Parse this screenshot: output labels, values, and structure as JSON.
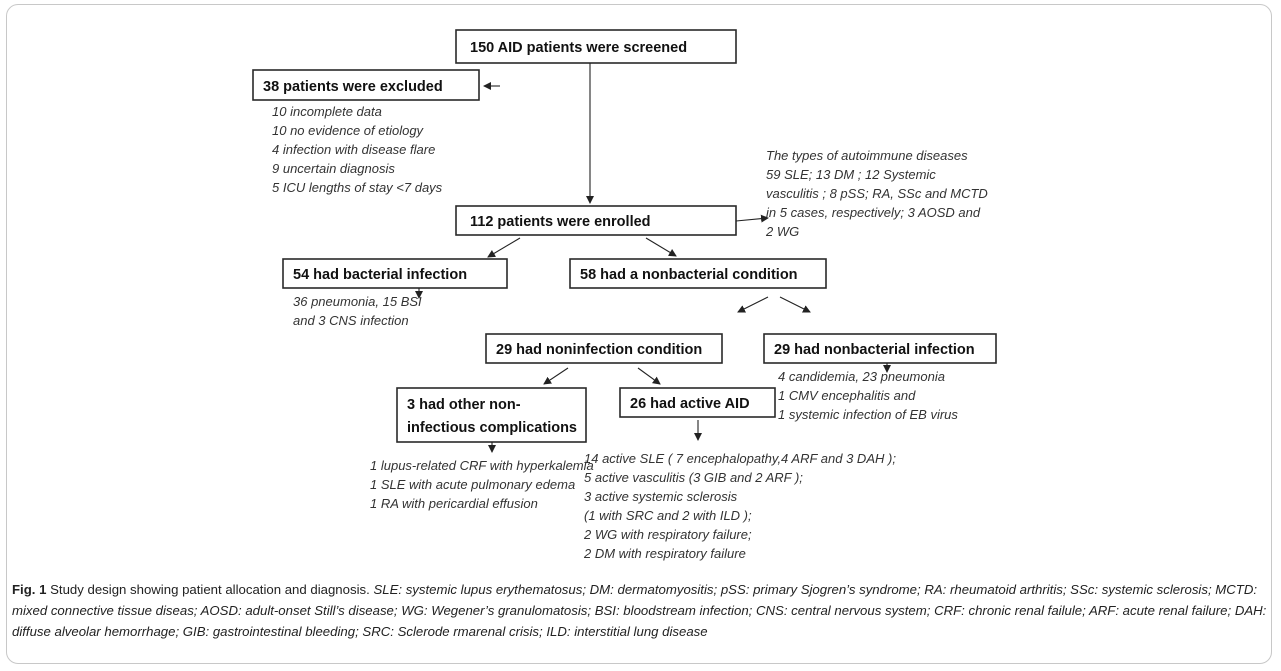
{
  "boxes": {
    "screened": "150 AID patients were screened",
    "excluded": "38 patients were excluded",
    "enrolled": "112 patients were enrolled",
    "bacterial": "54 had bacterial infection",
    "nonbacterial_condition": "58 had a nonbacterial condition",
    "noninfection": "29 had noninfection condition",
    "nonbacterial_infection": "29 had nonbacterial infection",
    "other_line1": "3 had other non-",
    "other_line2": "infectious complications",
    "active_aid": "26 had active AID"
  },
  "notes": {
    "excluded": [
      "10 incomplete data",
      "10 no evidence of etiology",
      "4 infection with disease flare",
      "9 uncertain diagnosis",
      "5 ICU lengths of stay <7 days"
    ],
    "types": [
      "The types of autoimmune diseases",
      "59 SLE; 13 DM ; 12 Systemic",
      "vasculitis ; 8 pSS; RA, SSc and MCTD",
      "in 5 cases, respectively; 3 AOSD and",
      "2 WG"
    ],
    "bacterial": [
      "36 pneumonia, 15 BSI",
      "and 3 CNS infection"
    ],
    "nonbacterial_infection": [
      "4 candidemia, 23 pneumonia",
      "1 CMV encephalitis and",
      "1 systemic infection of EB virus"
    ],
    "other": [
      "1 lupus-related CRF with hyperkalemia",
      "1 SLE with acute pulmonary edema",
      "1 RA with pericardial effusion"
    ],
    "active_aid": [
      "14 active SLE ( 7 encephalopathy,4 ARF and 3 DAH );",
      "5 active vasculitis (3 GIB and 2 ARF );",
      "3 active systemic sclerosis",
      "(1 with SRC and 2 with ILD );",
      "2 WG with respiratory failure;",
      "2 DM with respiratory failure"
    ]
  },
  "caption": {
    "label": "Fig. 1",
    "title": "Study design showing patient allocation and diagnosis.",
    "abbreviations": "SLE: systemic lupus erythematosus; DM: dermatomyositis; pSS: primary Sjogren’s syndrome; RA: rheumatoid arthritis; SSc: systemic sclerosis; MCTD: mixed connective tissue diseas; AOSD: adult-onset Still’s disease; WG: Wegener’s granulomatosis; BSI: bloodstream infection; CNS: central nervous system; CRF: chronic renal failule; ARF: acute renal failure; DAH: diffuse alveolar hemorrhage; GIB: gastrointestinal bleeding; SRC: Sclerode rmarenal crisis; ILD: interstitial lung disease"
  },
  "colors": {
    "box_stroke": "#2a2a2a",
    "note_text": "#333333",
    "frame": "#c8c8c8"
  }
}
